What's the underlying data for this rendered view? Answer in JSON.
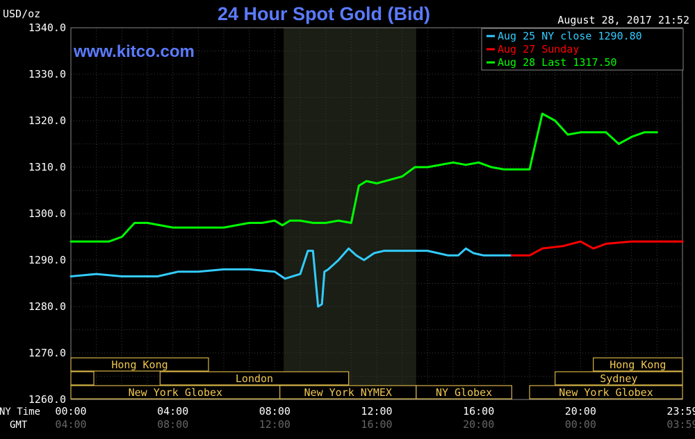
{
  "chart_data": {
    "type": "line",
    "title": "24 Hour Spot Gold (Bid)",
    "ylabel": "USD/oz",
    "watermark": "www.kitco.com",
    "timestamp": "August 28, 2017 21:52",
    "ylim": [
      1260,
      1340
    ],
    "yticks": [
      "1260.0",
      "1270.0",
      "1280.0",
      "1290.0",
      "1300.0",
      "1310.0",
      "1320.0",
      "1330.0",
      "1340.0"
    ],
    "xlim": [
      0,
      24
    ],
    "x_ny_label": "NY Time",
    "x_gmt_label": "GMT",
    "x_ny_ticks": [
      "00:00",
      "04:00",
      "08:00",
      "12:00",
      "16:00",
      "20:00",
      "23:59"
    ],
    "x_gmt_ticks": [
      "04:00",
      "08:00",
      "12:00",
      "16:00",
      "20:00",
      "00:00",
      "03:59"
    ],
    "grid": true,
    "legend_position": "top-right",
    "shaded_period": [
      8.35,
      13.55
    ],
    "series": [
      {
        "name": "Aug 25 NY close 1290.80",
        "color": "#33ccff",
        "x": [
          0,
          1,
          2,
          2.8,
          3.4,
          4.2,
          5,
          6,
          7,
          8,
          8.4,
          9,
          9.3,
          9.5,
          9.7,
          9.85,
          9.95,
          10.1,
          10.3,
          10.5,
          10.9,
          11.2,
          11.5,
          11.9,
          12.3,
          13,
          14,
          14.8,
          15.2,
          15.5,
          15.8,
          16.2,
          16.8,
          17.3
        ],
        "values": [
          1286.5,
          1287,
          1286.5,
          1286.5,
          1286.5,
          1287.5,
          1287.5,
          1288,
          1288,
          1287.5,
          1286,
          1287,
          1292,
          1292,
          1280,
          1280.5,
          1287.5,
          1288,
          1289,
          1290,
          1292.5,
          1291,
          1290,
          1291.5,
          1292,
          1292,
          1292,
          1291,
          1291,
          1292.5,
          1291.5,
          1291,
          1291,
          1291
        ]
      },
      {
        "name": "Aug 27 Sunday",
        "color": "#ff0000",
        "x": [
          17.3,
          18,
          18.5,
          19.3,
          20,
          20.5,
          21,
          22,
          23,
          24
        ],
        "values": [
          1291,
          1291,
          1292.5,
          1293,
          1294,
          1292.5,
          1293.5,
          1294,
          1294,
          1294
        ]
      },
      {
        "name": "Aug 28 Last 1317.50",
        "color": "#00ff00",
        "x": [
          0,
          1,
          1.5,
          2,
          2.5,
          3,
          4,
          5,
          6,
          7,
          7.5,
          8,
          8.3,
          8.6,
          9,
          9.5,
          10,
          10.5,
          11,
          11.3,
          11.6,
          12,
          13,
          13.5,
          14,
          15,
          15.5,
          16,
          16.5,
          17,
          17.4,
          18,
          18.1,
          18.5,
          19,
          19.5,
          20,
          21,
          21.5,
          22,
          22.5,
          23
        ],
        "values": [
          1294,
          1294,
          1294,
          1295,
          1298,
          1298,
          1297,
          1297,
          1297,
          1298,
          1298,
          1298.5,
          1297.5,
          1298.5,
          1298.5,
          1298,
          1298,
          1298.5,
          1298,
          1306,
          1307,
          1306.5,
          1308,
          1310,
          1310,
          1311,
          1310.5,
          1311,
          1310,
          1309.5,
          1309.5,
          1309.5,
          1312,
          1321.5,
          1320,
          1317,
          1317.5,
          1317.5,
          1315,
          1316.5,
          1317.5,
          1317.5
        ]
      }
    ],
    "session_bars": [
      {
        "label": "Hong Kong",
        "row": 1,
        "start": 0,
        "end": 5.4
      },
      {
        "label": "",
        "row": 2,
        "start": 0,
        "end": 0.9
      },
      {
        "label": "London",
        "row": 2,
        "start": 3.5,
        "end": 10.9
      },
      {
        "label": "New York Globex",
        "row": 3,
        "start": 0,
        "end": 8.2
      },
      {
        "label": "New York NYMEX",
        "row": 3,
        "start": 8.2,
        "end": 13.55
      },
      {
        "label": "NY Globex",
        "row": 3,
        "start": 13.55,
        "end": 17.3
      },
      {
        "label": "Hong Kong",
        "row": 1,
        "start": 20.5,
        "end": 24
      },
      {
        "label": "Sydney",
        "row": 2,
        "start": 19,
        "end": 24
      },
      {
        "label": "New York Globex",
        "row": 3,
        "start": 18,
        "end": 24
      }
    ]
  }
}
